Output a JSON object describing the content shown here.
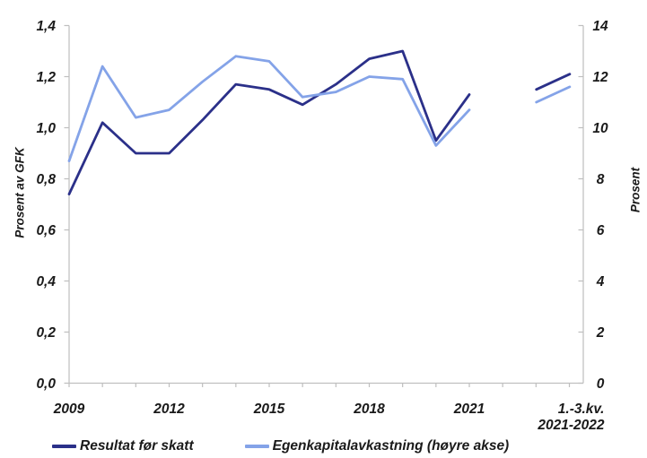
{
  "chart_data": {
    "type": "line",
    "title": "",
    "grid": false,
    "legend_position": "bottom",
    "x_categories": [
      2009,
      2010,
      2011,
      2012,
      2013,
      2014,
      2015,
      2016,
      2017,
      2018,
      2019,
      2020,
      2021
    ],
    "x_labeled_ticks": [
      {
        "index": 0,
        "label": "2009"
      },
      {
        "index": 3,
        "label": "2012"
      },
      {
        "index": 6,
        "label": "2015"
      },
      {
        "index": 9,
        "label": "2018"
      },
      {
        "index": 12,
        "label": "2021"
      }
    ],
    "extra_period": {
      "label_lines": [
        "1.-3.kv.",
        "2021-2022"
      ],
      "description": "detached segment for first three quarters of 2021 and 2022"
    },
    "left_axis": {
      "title": "Prosent av GFK",
      "min": 0,
      "max": 1.4,
      "step": 0.2,
      "tick_labels": [
        "0,0",
        "0,2",
        "0,4",
        "0,6",
        "0,8",
        "1,0",
        "1,2",
        "1,4"
      ]
    },
    "right_axis": {
      "title": "Prosent",
      "min": 0,
      "max": 14,
      "step": 2,
      "tick_labels": [
        "0",
        "2",
        "4",
        "6",
        "8",
        "10",
        "12",
        "14"
      ]
    },
    "series": [
      {
        "name": "Resultat før skatt",
        "axis": "left",
        "color": "#2B3089",
        "values": [
          0.74,
          1.02,
          0.9,
          0.9,
          1.03,
          1.17,
          1.15,
          1.09,
          1.17,
          1.27,
          1.3,
          0.95,
          1.13
        ],
        "extra_values": [
          1.15,
          1.21
        ]
      },
      {
        "name": "Egenkapitalavkastning (høyre akse)",
        "axis": "right",
        "color": "#84A3E8",
        "values": [
          8.7,
          12.4,
          10.4,
          10.7,
          11.8,
          12.8,
          12.6,
          11.2,
          11.4,
          12.0,
          11.9,
          9.3,
          10.7
        ],
        "extra_values": [
          11.0,
          11.6
        ]
      }
    ],
    "axis_color": "#BFBFBF",
    "text_color": "#1a1a1a"
  }
}
